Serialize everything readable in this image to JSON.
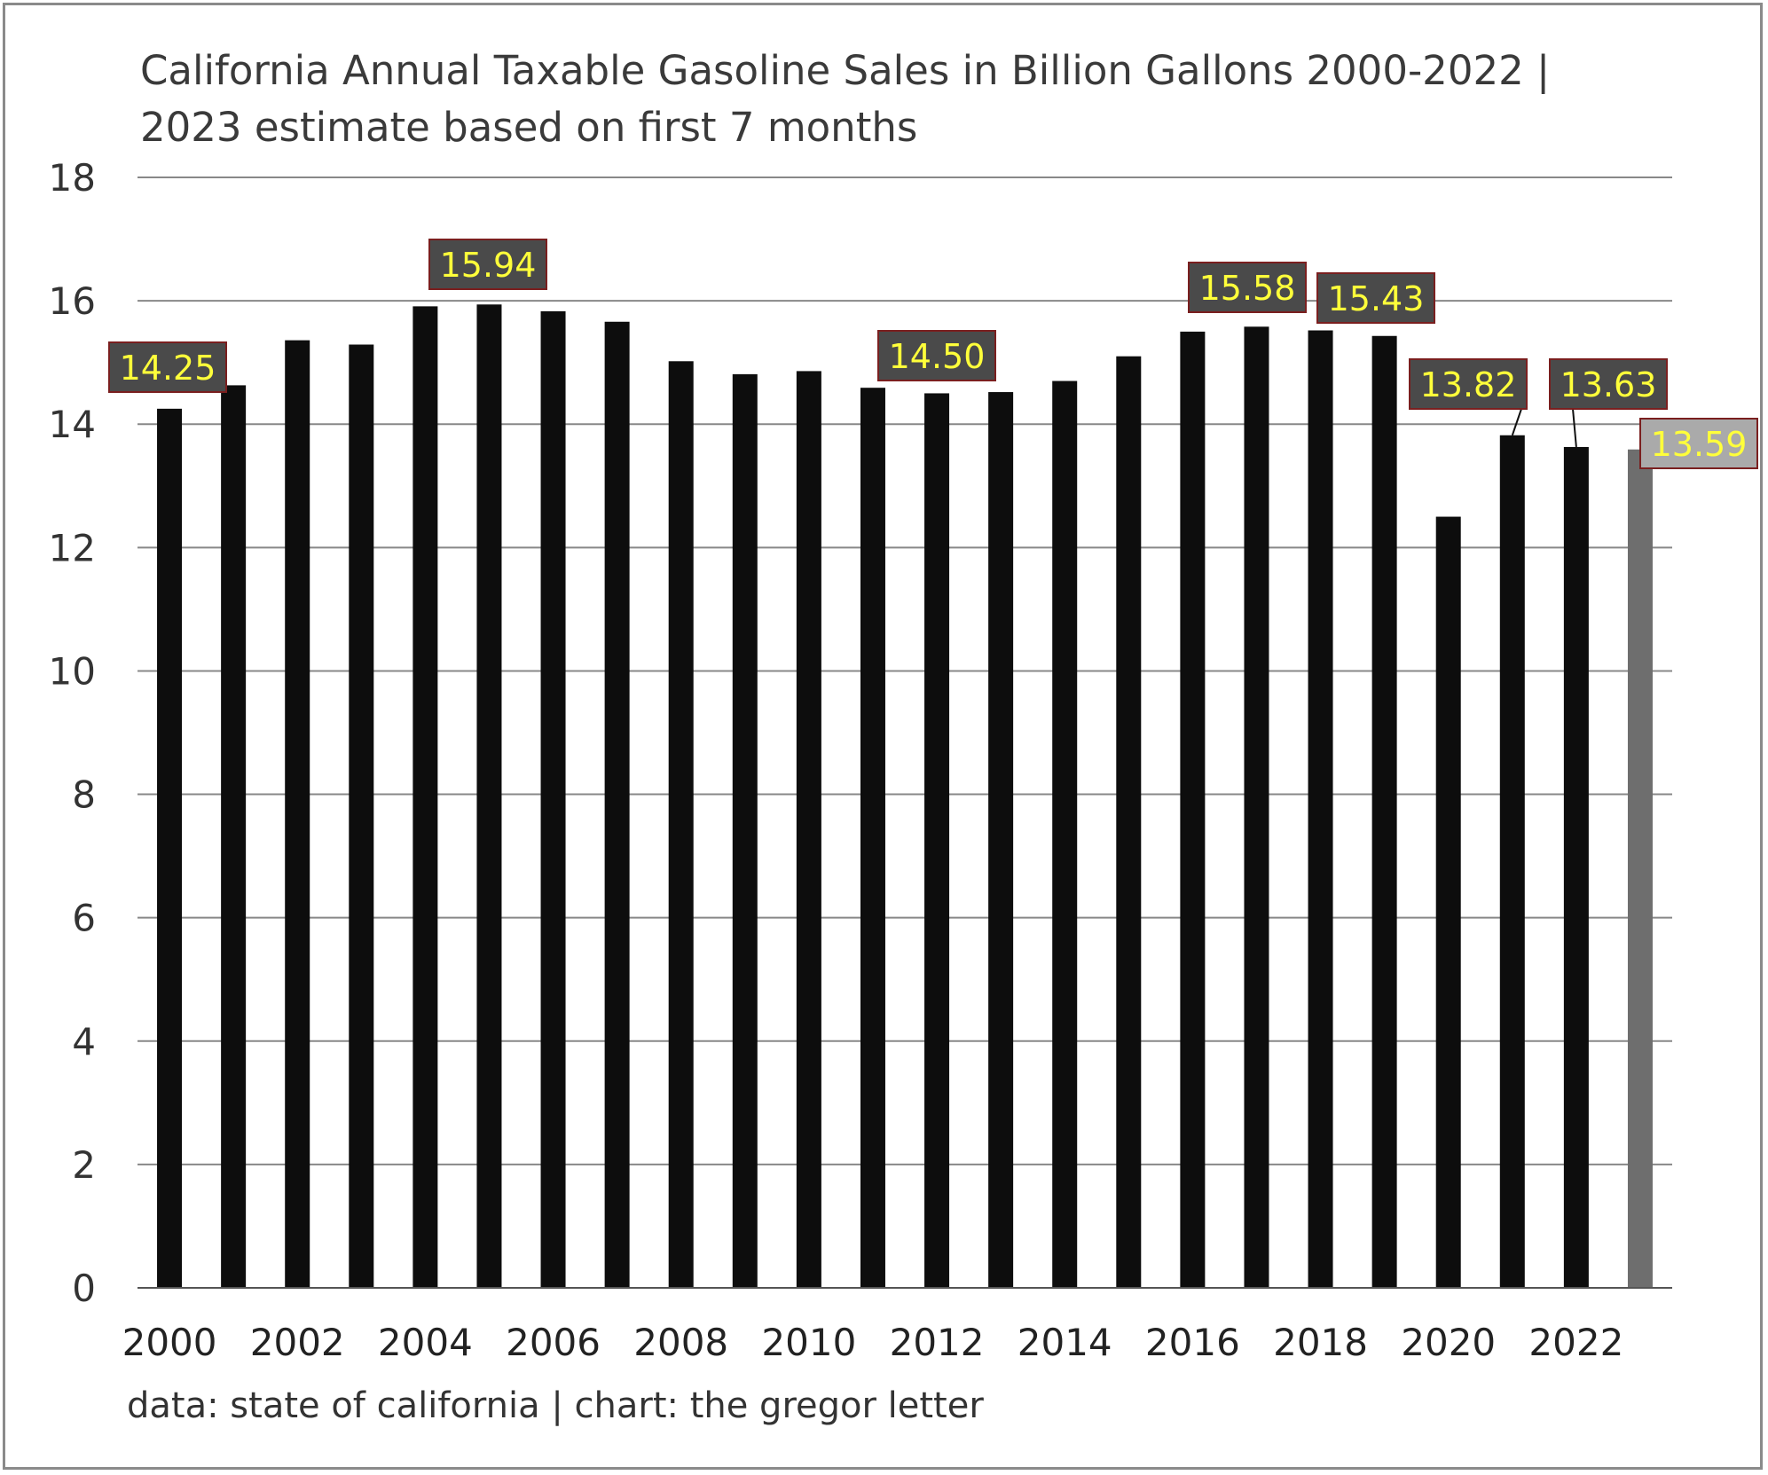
{
  "chart_data": {
    "type": "bar",
    "title": "California Annual Taxable Gasoline Sales in Billion Gallons 2000-2022 | 2023 estimate based on first 7 months",
    "source_note": "data: state of california | chart: the gregor letter",
    "xlabel": "",
    "ylabel": "",
    "ylim": [
      0,
      18
    ],
    "yticks": [
      "0",
      "2",
      "4",
      "6",
      "8",
      "10",
      "12",
      "14",
      "16",
      "18"
    ],
    "xtick_labels": [
      "2000",
      "2002",
      "2004",
      "2006",
      "2008",
      "2010",
      "2012",
      "2014",
      "2016",
      "2018",
      "2020",
      "2022"
    ],
    "grid": true,
    "categories": [
      "2000",
      "2001",
      "2002",
      "2003",
      "2004",
      "2005",
      "2006",
      "2007",
      "2008",
      "2009",
      "2010",
      "2011",
      "2012",
      "2013",
      "2014",
      "2015",
      "2016",
      "2017",
      "2018",
      "2019",
      "2020",
      "2021",
      "2022",
      "2023"
    ],
    "values": [
      14.25,
      14.63,
      15.36,
      15.29,
      15.91,
      15.94,
      15.83,
      15.66,
      15.02,
      14.81,
      14.86,
      14.59,
      14.5,
      14.52,
      14.7,
      15.1,
      15.5,
      15.58,
      15.52,
      15.43,
      12.5,
      13.82,
      13.63,
      13.59
    ],
    "estimate_category": "2023",
    "colors": {
      "bar": "#0d0d0d",
      "estimate_bar": "#6e6e6e",
      "grid": "#888888",
      "label_bg": "#4a4a4a",
      "label_border": "#7a1f1f",
      "label_text": "#ffff3a",
      "estimate_label_bg": "#aaaaaa"
    },
    "data_labels": [
      {
        "category": "2000",
        "text": "14.25"
      },
      {
        "category": "2005",
        "text": "15.94"
      },
      {
        "category": "2012",
        "text": "14.50"
      },
      {
        "category": "2017",
        "text": "15.58"
      },
      {
        "category": "2019",
        "text": "15.43"
      },
      {
        "category": "2021",
        "text": "13.82"
      },
      {
        "category": "2022",
        "text": "13.63"
      },
      {
        "category": "2023",
        "text": "13.59"
      }
    ]
  }
}
